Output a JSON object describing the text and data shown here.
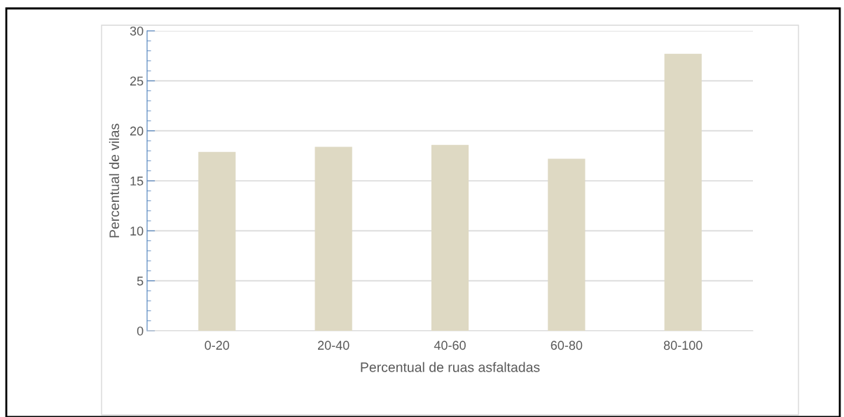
{
  "chart_data": {
    "type": "bar",
    "xlabel": "Percentual de ruas asfaltadas",
    "ylabel": "Percentual de vilas",
    "categories": [
      "0-20",
      "20-40",
      "40-60",
      "60-80",
      "80-100"
    ],
    "values": [
      17.9,
      18.4,
      18.6,
      17.2,
      27.7
    ],
    "color": "#ded9c3",
    "ylim": [
      0,
      30
    ],
    "yticks": [
      0,
      5,
      10,
      15,
      20,
      25,
      30
    ],
    "grid": "y",
    "legend": false
  }
}
